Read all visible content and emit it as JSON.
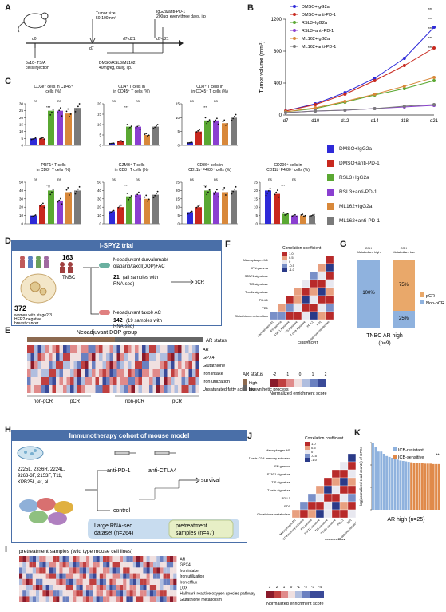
{
  "colors": {
    "DMSO+IgG2a": "#2e2ad8",
    "DMSO+anti-PD-1": "#c8281e",
    "RSL3+IgG2a": "#5aa832",
    "RSL3+anti-PD-1": "#8a3fd0",
    "ML162+IgG2a": "#d8883a",
    "ML162+anti-PD-1": "#7a7a7a",
    "header": "#4a6fa8",
    "ar_high": "#8c6a50",
    "ar_low": "#666666",
    "pcr": "#e9a86a",
    "nonpcr": "#8fb2de"
  },
  "panel_labels": [
    "A",
    "B",
    "C",
    "D",
    "E",
    "F",
    "G",
    "H",
    "I",
    "J",
    "K"
  ],
  "panelA": {
    "d0": "d0",
    "d7": "d7",
    "d7_d21": "d7-d21",
    "d7_d21b": "d7-d21",
    "tumor_size": "Tumor size",
    "tumor_size2": "50-100mm³",
    "igg": "IgG2a/anti-PD-1",
    "igg2": "200μg, every three days, i.p",
    "cells": "5x10⁵ TS/A",
    "cells2": "cells injection",
    "drug": "DMSO/RSL3/ML162",
    "drug2": "40mg/kg, daily, i.p."
  },
  "legend": [
    "DMSO+IgG2a",
    "DMSO+anti-PD-1",
    "RSL3+IgG2a",
    "RSL3+anti-PD-1",
    "ML162+IgG2a",
    "ML162+anti-PD-1"
  ],
  "chart_data": [
    {
      "panel": "B",
      "type": "line",
      "ylabel": "Tumor volume (mm³)",
      "x": [
        "d7",
        "d10",
        "d12",
        "d14",
        "d18",
        "d21"
      ],
      "ylim": [
        0,
        1200
      ],
      "yticks": [
        0,
        400,
        800,
        1200
      ],
      "series": [
        {
          "name": "DMSO+IgG2a",
          "values": [
            50,
            140,
            280,
            460,
            710,
            1100
          ]
        },
        {
          "name": "DMSO+anti-PD-1",
          "values": [
            50,
            130,
            260,
            430,
            620,
            840
          ]
        },
        {
          "name": "RSL3+IgG2a",
          "values": [
            40,
            80,
            160,
            250,
            330,
            430
          ]
        },
        {
          "name": "RSL3+anti-PD-1",
          "values": [
            30,
            50,
            60,
            80,
            100,
            120
          ]
        },
        {
          "name": "ML162+IgG2a",
          "values": [
            40,
            90,
            170,
            260,
            360,
            470
          ]
        },
        {
          "name": "ML162+anti-PD-1",
          "values": [
            30,
            50,
            60,
            80,
            110,
            130
          ]
        }
      ]
    },
    {
      "panel": "C",
      "type": "bar",
      "subplots": [
        {
          "title": "CD3e⁺ cells in CD45⁺\ncells (%)",
          "yticks": [
            0,
            5,
            10,
            15,
            20,
            25,
            30
          ],
          "values": [
            5,
            5,
            25,
            25,
            23,
            27
          ]
        },
        {
          "title": "CD4⁺ T cells in\nin CD45⁺ T cells (%)",
          "yticks": [
            0,
            5,
            10,
            15,
            20
          ],
          "values": [
            1,
            2,
            9,
            9,
            5,
            9
          ]
        },
        {
          "title": "CD8⁺ T cells in\nin CD45⁺ T cells (%)",
          "yticks": [
            0,
            5,
            10,
            15
          ],
          "values": [
            1,
            5,
            9,
            9,
            8,
            10
          ]
        },
        {
          "title": "PRF1⁺ T cells\nin CD8⁺ T cells (%)",
          "yticks": [
            0,
            10,
            20,
            30,
            40,
            50
          ],
          "values": [
            10,
            22,
            40,
            28,
            38,
            40
          ]
        },
        {
          "title": "GZMB⁺ T cells\nin CD8⁺ T cells (%)",
          "yticks": [
            0,
            10,
            20,
            30,
            40,
            50
          ],
          "values": [
            15,
            20,
            33,
            35,
            30,
            35
          ]
        },
        {
          "title": "CD86⁺ cells in\nCD11b⁺F4/80⁺ cells (%)",
          "yticks": [
            0,
            5,
            10,
            15,
            20,
            25
          ],
          "values": [
            7,
            10,
            20,
            19,
            19,
            20
          ]
        },
        {
          "title": "CD206⁺ cells in\nCD11b⁺F4/80⁺ cells (%)",
          "yticks": [
            0,
            5,
            10,
            15,
            20,
            25
          ],
          "values": [
            20,
            18,
            6,
            5,
            5,
            5
          ]
        }
      ]
    },
    {
      "panel": "G",
      "type": "bar",
      "title": "TNBC AR high",
      "subtitle": "(n=9)",
      "categories": [
        "GSH Metabolism high",
        "GSH Metabolism low"
      ],
      "series": [
        {
          "name": "pCR",
          "values": [
            0,
            75
          ]
        },
        {
          "name": "Non-pCR",
          "values": [
            100,
            25
          ]
        }
      ],
      "labels": [
        "100%",
        "75%",
        "25%"
      ]
    },
    {
      "panel": "K",
      "type": "bar",
      "ylabel": "log(normalized read counts) of GPX4",
      "title": "AR high (n=25)",
      "legend": [
        "ICB-resistant",
        "ICB-sensitive"
      ],
      "values": [
        15,
        14,
        13,
        13,
        12.5,
        12,
        11.8,
        11.6,
        11.4,
        11.2,
        11,
        10.9,
        10.8,
        10.7,
        10.6,
        10.5,
        10.5,
        10.4,
        10.4,
        10.3,
        10.3,
        10.3,
        10.2,
        10.2,
        10.2
      ],
      "ylim": [
        0,
        15
      ],
      "yticks": [
        0,
        5,
        10,
        15
      ]
    }
  ],
  "panelC_sig": [
    "ns",
    "*",
    "**",
    "***"
  ],
  "panelD": {
    "header": "I-SPY2 trial",
    "tnbc_n": "163",
    "tnbc": "TNBC",
    "women_n": "372",
    "women": "women with stage2/3\nHER2-negative\nbreast cancer",
    "arm1": "Neoadjuvant durvalumab/\nolaparib/taxol(DOP)+AC",
    "arm1_n": "21",
    "arm1_txt": "(all samples with\nRNA-seq)",
    "arm1_out": "pCR",
    "arm2": "Neoadjuvant taxol+AC",
    "arm2_n": "142",
    "arm2_txt": "(19 samples with\nRNA-seq)"
  },
  "panelE": {
    "title": "Neoadjuvant DOP group",
    "ar_status": "AR status",
    "rows": [
      "AR",
      "GPX4",
      "Glutathione",
      "Iron intake",
      "Iron utilization",
      "Unsaturated fatty acids biosynthetic process"
    ],
    "xlabels": [
      "non-pCR",
      "pCR",
      "non-pCR",
      "pCR"
    ],
    "legend_title": "AR status",
    "legend_high": "high",
    "legend_low": "low",
    "scale": "Normalized enrichment score",
    "scale_ticks": [
      "-2",
      "-1",
      "0",
      "1",
      "2"
    ]
  },
  "panelF": {
    "title": "Correlation coefficient",
    "ticks": [
      "1.0",
      "0.5",
      "0",
      "-0.5",
      "-1.0"
    ],
    "rows": [
      "Macrophages.M1",
      "IFN.gamma",
      "STAT1.signature",
      "TIS.signature",
      "T cells signature",
      "PD-L1",
      "PD1",
      "Glutathione metabolism"
    ],
    "xlabel": "CIBERSORT"
  },
  "panelH": {
    "header": "Immunotherapy cohort of mouse model",
    "cell_lines": "2225L, 2336R, 2224L,\n9263-3F, 2153F, T11,\nKPB25L, et, al.",
    "anti_pd1": "anti-PD-1",
    "anti_ctla4": "anti-CTLA4",
    "survival": "survival",
    "control": "control",
    "dataset": "Large RNA-seq\ndataset (n=264)",
    "pretreat": "pretreatment\nsamples (n=47)"
  },
  "panelI": {
    "title": "pretreatment samples (wild type mouse cell lines)",
    "rows": [
      "AR",
      "GPX4",
      "Iron intake",
      "Iron utilization",
      "Iron efflux",
      "LOX",
      "Hallmark reactive oxygen species pathway",
      "Glutathione metabolism"
    ],
    "scale": "Normalized enrichment score",
    "scale_ticks": [
      "3",
      "2",
      "1",
      "0",
      "-1",
      "-2",
      "-3",
      "-4"
    ]
  },
  "panelJ": {
    "title": "Correlation coefficient",
    "ticks": [
      "1.0",
      "0.5",
      "0",
      "-0.5",
      "-1.0"
    ],
    "rows": [
      "Macrophages.M1",
      "T cells.CD4.memory.activated",
      "IFN.gamma",
      "STAT1.signature",
      "TIS.signature",
      "T cells signature",
      "PD-L1",
      "PD1",
      "Glutathione metabolism"
    ],
    "xlabel": "CIBERSORT"
  }
}
